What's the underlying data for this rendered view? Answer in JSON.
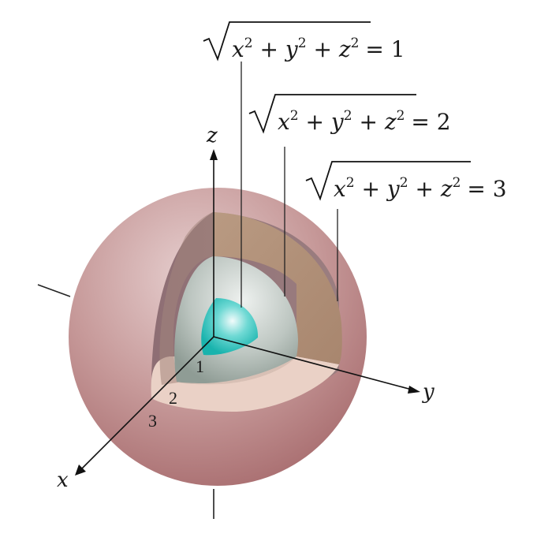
{
  "axes": {
    "x_label": "x",
    "y_label": "y",
    "z_label": "z"
  },
  "radius_ticks": [
    "1",
    "2",
    "3"
  ],
  "equations": [
    {
      "radicand": [
        "x",
        "2",
        " + ",
        "y",
        "2",
        " + ",
        "z",
        "2"
      ],
      "rhs": "= 1"
    },
    {
      "radicand": [
        "x",
        "2",
        " + ",
        "y",
        "2",
        " + ",
        "z",
        "2"
      ],
      "rhs": "= 2"
    },
    {
      "radicand": [
        "x",
        "2",
        " + ",
        "y",
        "2",
        " + ",
        "z",
        "2"
      ],
      "rhs": "= 3"
    }
  ],
  "colors": {
    "outer_shell": "#c48a8a",
    "middle_shell": "#b8937a",
    "inner_shell": "#b9c2bd",
    "core": "#38c6c0",
    "cut_face": "#e9c9bd"
  }
}
